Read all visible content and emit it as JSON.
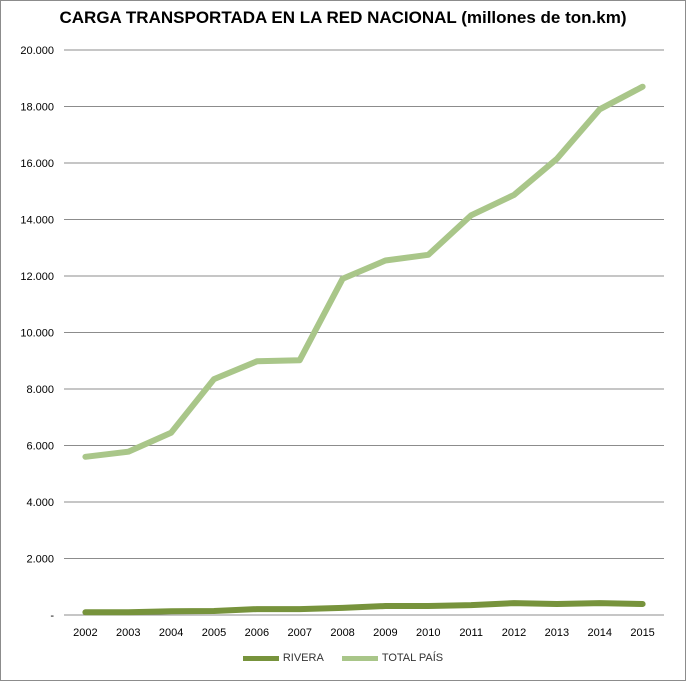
{
  "chart_data": {
    "type": "line",
    "title": "CARGA TRANSPORTADA EN LA RED NACIONAL (millones de ton.km)",
    "xlabel": "",
    "ylabel": "",
    "ylim": [
      0,
      20000
    ],
    "yticks": [
      0,
      2000,
      4000,
      6000,
      8000,
      10000,
      12000,
      14000,
      16000,
      18000,
      20000
    ],
    "ytick_labels": [
      "-",
      "2.000",
      "4.000",
      "6.000",
      "8.000",
      "10.000",
      "12.000",
      "14.000",
      "16.000",
      "18.000",
      "20.000"
    ],
    "categories": [
      "2002",
      "2003",
      "2004",
      "2005",
      "2006",
      "2007",
      "2008",
      "2009",
      "2010",
      "2011",
      "2012",
      "2013",
      "2014",
      "2015"
    ],
    "grid": true,
    "legend_position": "bottom",
    "series": [
      {
        "name": "RIVERA",
        "color": "#77933c",
        "values": [
          100,
          100,
          130,
          140,
          210,
          210,
          250,
          320,
          320,
          350,
          420,
          390,
          420,
          390
        ]
      },
      {
        "name": "TOTAL PAÍS",
        "color": "#a9c689",
        "values": [
          5600,
          5780,
          6450,
          8350,
          8980,
          9020,
          11900,
          12550,
          12750,
          14150,
          14870,
          16150,
          17900,
          18700
        ]
      }
    ]
  }
}
